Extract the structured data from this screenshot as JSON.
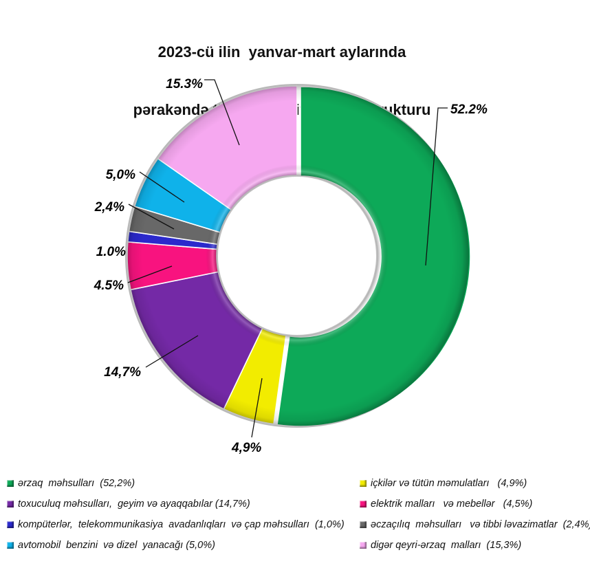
{
  "title": {
    "line1": "2023-cü ilin  yanvar-mart aylarında",
    "line2": "pərakəndə ticarət dövriyyəsinin strukturu"
  },
  "chart_data": {
    "type": "pie",
    "subtype": "donut-3d",
    "title": "2023-cü ilin yanvar-mart aylarında pərakəndə ticarət dövriyyəsinin strukturu",
    "units": "%",
    "direction": "clockwise",
    "start_angle_deg": 0,
    "inner_radius_ratio": 0.474,
    "total": 100.0,
    "legend_position": "bottom",
    "legend_columns": [
      [
        0,
        2,
        4,
        6
      ],
      [
        1,
        3,
        5,
        7
      ]
    ],
    "segments": [
      {
        "key": "erzaq",
        "label": "ərzaq məhsulları",
        "value": 52.2,
        "callout": "52.2%",
        "legend": "ərzaq  məhsulları  (52,2%)",
        "color": "#0da958"
      },
      {
        "key": "ickiler",
        "label": "içkilər və tütün məmulatları",
        "value": 4.9,
        "callout": "4,9%",
        "legend": "içkilər və tütün məmulatları   (4,9%)",
        "color": "#f2ec00"
      },
      {
        "key": "toxuculuq",
        "label": "toxuculuq məhsulları, geyim və ayaqqabılar",
        "value": 14.7,
        "callout": "14,7%",
        "legend": "toxuculuq məhsulları,  geyim və ayaqqabılar (14,7%)",
        "color": "#7429a6"
      },
      {
        "key": "elektrik",
        "label": "elektrik malları və mebellər",
        "value": 4.5,
        "callout": "4.5%",
        "legend": "elektrik malları   və mebellər   (4,5%)",
        "color": "#f8137f"
      },
      {
        "key": "komputerler",
        "label": "kompüterlər, telekommunikasiya avadanlıqları və çap məhsulları",
        "value": 1.0,
        "callout": "1.0%",
        "legend": "kompüterlər,  telekommunikasiya  avadanlıqları  və çap məhsulları  (1,0%)",
        "color": "#2b29cc"
      },
      {
        "key": "eczaciliq",
        "label": "əczaçılıq məhsulları və tibbi ləvazimatlar",
        "value": 2.4,
        "callout": "2,4%",
        "legend": "əczaçılıq  məhsulları   və tibbi ləvazimatlar  (2,4%)",
        "color": "#686868"
      },
      {
        "key": "avtomobil",
        "label": "avtomobil benzini və dizel yanacağı",
        "value": 5.0,
        "callout": "5,0%",
        "legend": "avtomobil  benzini  və dizel  yanacağı (5,0%)",
        "color": "#0fb2ea"
      },
      {
        "key": "diger",
        "label": "digər qeyri-ərzaq malları",
        "value": 15.3,
        "callout": "15.3%",
        "legend": "digər qeyri-ərzaq  malları  (15,3%)",
        "color": "#f6a8f0"
      }
    ]
  }
}
